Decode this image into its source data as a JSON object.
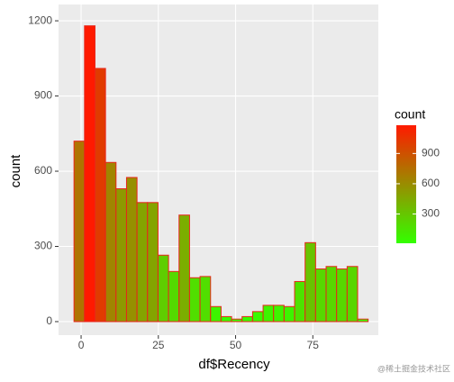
{
  "chart_data": {
    "type": "histogram",
    "x_label": "df$Recency",
    "y_label": "count",
    "bins": [
      -2.3,
      1.1,
      4.5,
      7.9,
      11.3,
      14.7,
      18.1,
      21.5,
      24.9,
      28.3,
      31.7,
      35.1,
      38.5,
      41.9,
      45.3,
      48.7,
      52.1,
      55.5,
      58.9,
      62.3,
      65.7,
      69.1,
      72.5,
      75.9,
      79.3,
      82.7,
      86.1,
      89.5,
      92.9
    ],
    "values": [
      720,
      1180,
      1010,
      635,
      530,
      575,
      475,
      475,
      265,
      200,
      425,
      175,
      180,
      60,
      20,
      10,
      20,
      40,
      65,
      65,
      60,
      160,
      315,
      210,
      220,
      210,
      220,
      10
    ],
    "fill_low": "#33ff00",
    "fill_high": "#ff1a00",
    "outline": "#e8261a",
    "xlim": [
      -7.3,
      96.2
    ],
    "xticks": [
      0,
      25,
      50,
      75
    ],
    "ylim": [
      -54,
      1265
    ],
    "yticks": [
      0,
      300,
      600,
      900,
      1200
    ],
    "grid": true,
    "legend": {
      "title": "count",
      "ticks": [
        300,
        600,
        900
      ]
    },
    "watermark": "@稀土掘金技术社区"
  }
}
